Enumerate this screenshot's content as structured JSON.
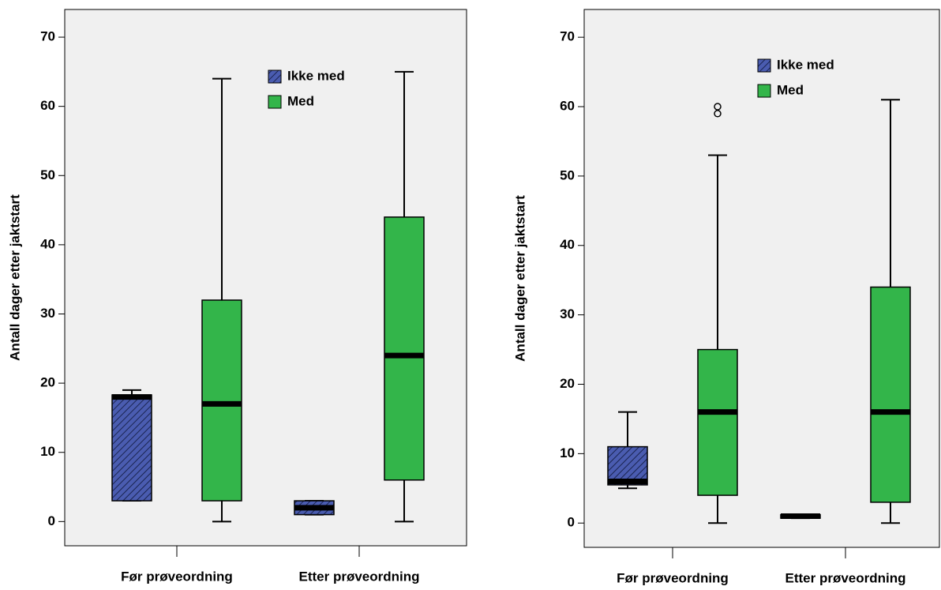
{
  "chart_data": [
    {
      "type": "boxplot",
      "ylabel": "Antall dager etter jaktstart",
      "categories": [
        "Før prøveordning",
        "Etter prøveordning"
      ],
      "ylim": [
        -3.5,
        74
      ],
      "yticks": [
        0,
        10,
        20,
        30,
        40,
        50,
        60,
        70
      ],
      "series": [
        {
          "name": "Ikke med",
          "color": "#4a5cb0",
          "pattern": "hatch",
          "min": [
            3,
            1
          ],
          "q1": [
            3,
            1
          ],
          "median": [
            18,
            2
          ],
          "q3": [
            18.3,
            3
          ],
          "max": [
            19,
            3
          ]
        },
        {
          "name": "Med",
          "color": "#33b54a",
          "min": [
            0,
            0
          ],
          "q1": [
            3,
            6
          ],
          "median": [
            17,
            24
          ],
          "q3": [
            32,
            44
          ],
          "max": [
            64,
            65
          ]
        }
      ]
    },
    {
      "type": "boxplot",
      "ylabel": "Antall dager etter jaktstart",
      "categories": [
        "Før prøveordning",
        "Etter prøveordning"
      ],
      "ylim": [
        -3.5,
        74
      ],
      "yticks": [
        0,
        10,
        20,
        30,
        40,
        50,
        60,
        70
      ],
      "series": [
        {
          "name": "Ikke med",
          "color": "#4a5cb0",
          "pattern": "hatch",
          "min": [
            5,
            0.7
          ],
          "q1": [
            5.5,
            0.7
          ],
          "median": [
            6,
            1
          ],
          "q3": [
            11,
            1.2
          ],
          "max": [
            16,
            1.2
          ]
        },
        {
          "name": "Med",
          "color": "#33b54a",
          "min": [
            0,
            0
          ],
          "q1": [
            4,
            3
          ],
          "median": [
            16,
            16
          ],
          "q3": [
            25,
            34
          ],
          "max": [
            53,
            61
          ],
          "outliers": [
            [
              59,
              60
            ],
            []
          ]
        }
      ]
    }
  ]
}
